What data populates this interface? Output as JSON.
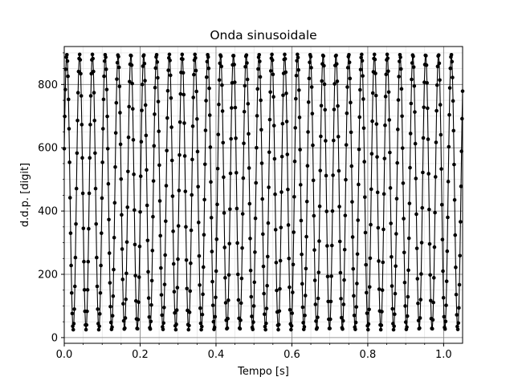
{
  "chart_data": {
    "type": "line",
    "title": "Onda sinusoidale",
    "xlabel": "Tempo [s]",
    "ylabel": "d.d.p. [digit]",
    "xlim": [
      0.0,
      1.05
    ],
    "ylim": [
      -18,
      920
    ],
    "xticks": [
      0.0,
      0.2,
      0.4,
      0.6,
      0.8,
      1.0
    ],
    "xtick_labels": [
      "0.0",
      "0.2",
      "0.4",
      "0.6",
      "0.8",
      "1.0"
    ],
    "yticks": [
      0,
      200,
      400,
      600,
      800
    ],
    "ytick_labels": [
      "0",
      "200",
      "400",
      "600",
      "800"
    ],
    "grid": true,
    "marker": "circle",
    "color": "#000000",
    "series": [
      {
        "name": "",
        "signal": {
          "shape": "sine",
          "offset_digit": 460,
          "amplitude_digit": 435,
          "frequency_hz": 29.6,
          "phase_rad": 0.32,
          "sample_interval_s": 0.0014,
          "t_start_s": 0.0,
          "t_end_s": 1.05
        }
      }
    ]
  }
}
